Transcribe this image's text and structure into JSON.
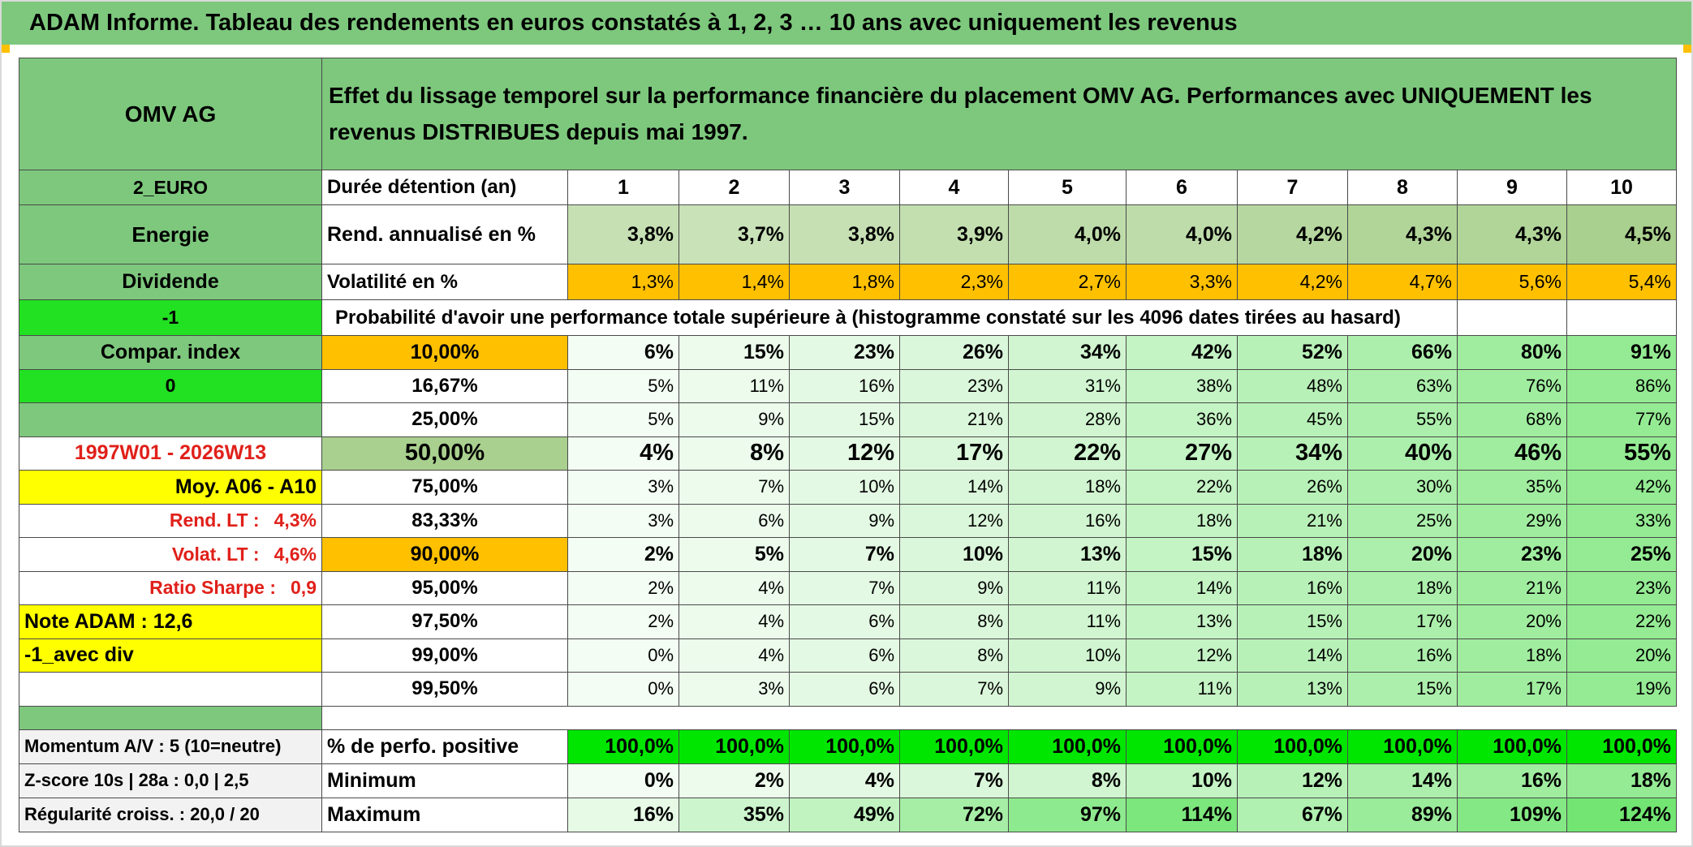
{
  "header": {
    "title": "ADAM Informe. Tableau des rendements en euros constatés à 1, 2, 3 … 10 ans avec uniquement les revenus"
  },
  "table": {
    "company": "OMV AG",
    "description": "Effet du lissage temporel sur la performance financière du placement OMV AG. Performances avec UNIQUEMENT les revenus DISTRIBUES depuis mai 1997.",
    "rows": [
      {
        "side": "2_EURO",
        "label": "Durée détention (an)",
        "cells": [
          "1",
          "2",
          "3",
          "4",
          "5",
          "6",
          "7",
          "8",
          "9",
          "10"
        ]
      },
      {
        "side": "Energie",
        "label": "Rend. annualisé en %",
        "cells": [
          "3,8%",
          "3,7%",
          "3,8%",
          "3,9%",
          "4,0%",
          "4,0%",
          "4,2%",
          "4,3%",
          "4,3%",
          "4,5%"
        ]
      },
      {
        "side": "Dividende",
        "label": "Volatilité en %",
        "cells": [
          "1,3%",
          "1,4%",
          "1,8%",
          "2,3%",
          "2,7%",
          "3,3%",
          "4,2%",
          "4,7%",
          "5,6%",
          "5,4%"
        ]
      },
      {
        "side": "-1",
        "label": "Probabilité d'avoir une performance totale supérieure à (histogramme constaté sur les 4096 dates tirées au hasard)"
      },
      {
        "side": "Compar. index",
        "label": "10,00%",
        "cells": [
          "6%",
          "15%",
          "23%",
          "26%",
          "34%",
          "42%",
          "52%",
          "66%",
          "80%",
          "91%"
        ]
      },
      {
        "side": "0",
        "label": "16,67%",
        "cells": [
          "5%",
          "11%",
          "16%",
          "23%",
          "31%",
          "38%",
          "48%",
          "63%",
          "76%",
          "86%"
        ]
      },
      {
        "label": "25,00%",
        "cells": [
          "5%",
          "9%",
          "15%",
          "21%",
          "28%",
          "36%",
          "45%",
          "55%",
          "68%",
          "77%"
        ]
      },
      {
        "side": "1997W01 - 2026W13",
        "label": "50,00%",
        "cells": [
          "4%",
          "8%",
          "12%",
          "17%",
          "22%",
          "27%",
          "34%",
          "40%",
          "46%",
          "55%"
        ]
      },
      {
        "side": "Moy. A06 - A10",
        "label": "75,00%",
        "cells": [
          "3%",
          "7%",
          "10%",
          "14%",
          "18%",
          "22%",
          "26%",
          "30%",
          "35%",
          "42%"
        ]
      },
      {
        "side": "Rend. LT :",
        "side_value": "4,3%",
        "label": "83,33%",
        "cells": [
          "3%",
          "6%",
          "9%",
          "12%",
          "16%",
          "18%",
          "21%",
          "25%",
          "29%",
          "33%"
        ]
      },
      {
        "side": "Volat. LT :",
        "side_value": "4,6%",
        "label": "90,00%",
        "cells": [
          "2%",
          "5%",
          "7%",
          "10%",
          "13%",
          "15%",
          "18%",
          "20%",
          "23%",
          "25%"
        ]
      },
      {
        "side": "Ratio Sharpe :",
        "side_value": "0,9",
        "label": "95,00%",
        "cells": [
          "2%",
          "4%",
          "7%",
          "9%",
          "11%",
          "14%",
          "16%",
          "18%",
          "21%",
          "23%"
        ]
      },
      {
        "side": "Note ADAM : 12,6",
        "label": "97,50%",
        "cells": [
          "2%",
          "4%",
          "6%",
          "8%",
          "11%",
          "13%",
          "15%",
          "17%",
          "20%",
          "22%"
        ]
      },
      {
        "side": "-1_avec div",
        "label": "99,00%",
        "cells": [
          "0%",
          "4%",
          "6%",
          "8%",
          "10%",
          "12%",
          "14%",
          "16%",
          "18%",
          "20%"
        ]
      },
      {
        "label": "99,50%",
        "cells": [
          "0%",
          "3%",
          "6%",
          "7%",
          "9%",
          "11%",
          "13%",
          "15%",
          "17%",
          "19%"
        ]
      }
    ],
    "summary_rows": [
      {
        "side": "Momentum A/V : 5 (10=neutre)",
        "label": "% de perfo. positive",
        "cells": [
          "100,0%",
          "100,0%",
          "100,0%",
          "100,0%",
          "100,0%",
          "100,0%",
          "100,0%",
          "100,0%",
          "100,0%",
          "100,0%"
        ]
      },
      {
        "side": "Z-score 10s | 28a : 0,0 | 2,5",
        "label": "Minimum",
        "cells": [
          "0%",
          "2%",
          "4%",
          "7%",
          "8%",
          "10%",
          "12%",
          "14%",
          "16%",
          "18%"
        ]
      },
      {
        "side": "Régularité croiss. : 20,0 / 20",
        "label": "Maximum",
        "cells": [
          "16%",
          "35%",
          "49%",
          "72%",
          "97%",
          "114%",
          "67%",
          "89%",
          "109%",
          "124%"
        ]
      }
    ]
  }
}
